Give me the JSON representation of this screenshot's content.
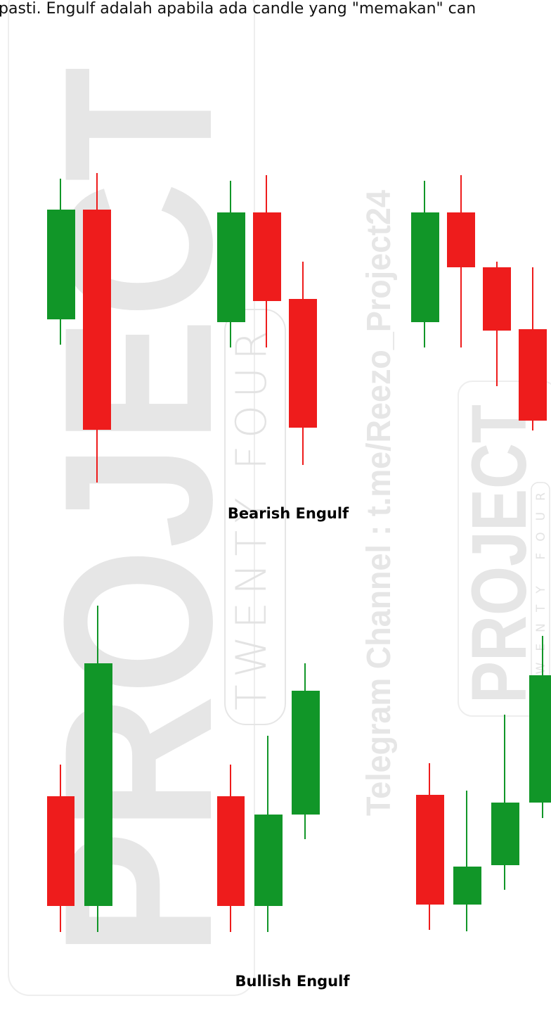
{
  "header": {
    "text": "pasti. Engulf adalah apabila ada candle yang \"memakan\" can"
  },
  "watermark": {
    "brand": "PROJECT",
    "tagline": "TWENTY FOUR",
    "channel": "Telegram Channel : t.me/Reezo_Project24"
  },
  "labels": {
    "bearish": "Bearish Engulf",
    "bullish": "Bullish Engulf"
  }
}
